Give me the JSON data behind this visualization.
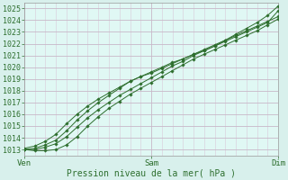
{
  "title": "",
  "xlabel": "Pression niveau de la mer( hPa )",
  "ylabel": "",
  "bg_color": "#d8f0ec",
  "plot_bg_color": "#e0f8f4",
  "grid_color_major": "#c8b8c8",
  "grid_color_minor": "#d8c8d8",
  "line_color": "#2d6e2d",
  "marker_color": "#2d6e2d",
  "tick_label_color": "#2d6e2d",
  "axis_label_color": "#2d6e2d",
  "ylim": [
    1012.5,
    1025.5
  ],
  "yticks": [
    1013,
    1014,
    1015,
    1016,
    1017,
    1018,
    1019,
    1020,
    1021,
    1022,
    1023,
    1024,
    1025
  ],
  "xtick_positions": [
    0.0,
    0.5,
    1.0
  ],
  "xtick_labels": [
    "Ven",
    "Sam",
    "Dim"
  ],
  "lines": [
    {
      "x": [
        0.0,
        0.042,
        0.083,
        0.125,
        0.167,
        0.208,
        0.25,
        0.292,
        0.333,
        0.375,
        0.417,
        0.458,
        0.5,
        0.542,
        0.583,
        0.625,
        0.667,
        0.708,
        0.75,
        0.792,
        0.833,
        0.875,
        0.917,
        0.958,
        1.0
      ],
      "y": [
        1013.0,
        1013.1,
        1013.4,
        1013.8,
        1014.6,
        1015.5,
        1016.3,
        1017.0,
        1017.6,
        1018.2,
        1018.8,
        1019.2,
        1019.5,
        1019.9,
        1020.3,
        1020.7,
        1021.1,
        1021.5,
        1021.9,
        1022.3,
        1022.7,
        1023.1,
        1023.5,
        1023.9,
        1024.3
      ]
    },
    {
      "x": [
        0.0,
        0.042,
        0.083,
        0.125,
        0.167,
        0.208,
        0.25,
        0.292,
        0.333,
        0.375,
        0.417,
        0.458,
        0.5,
        0.542,
        0.583,
        0.625,
        0.667,
        0.708,
        0.75,
        0.792,
        0.833,
        0.875,
        0.917,
        0.958,
        1.0
      ],
      "y": [
        1013.0,
        1012.9,
        1012.9,
        1013.0,
        1013.4,
        1014.1,
        1015.0,
        1015.8,
        1016.5,
        1017.1,
        1017.7,
        1018.2,
        1018.7,
        1019.2,
        1019.7,
        1020.2,
        1020.7,
        1021.1,
        1021.5,
        1021.9,
        1022.3,
        1022.7,
        1023.1,
        1023.6,
        1024.1
      ]
    },
    {
      "x": [
        0.0,
        0.042,
        0.083,
        0.125,
        0.167,
        0.208,
        0.25,
        0.292,
        0.333,
        0.375,
        0.417,
        0.458,
        0.5,
        0.542,
        0.583,
        0.625,
        0.667,
        0.708,
        0.75,
        0.792,
        0.833,
        0.875,
        0.917,
        0.958,
        1.0
      ],
      "y": [
        1013.1,
        1013.3,
        1013.7,
        1014.3,
        1015.2,
        1016.0,
        1016.7,
        1017.3,
        1017.8,
        1018.3,
        1018.8,
        1019.2,
        1019.6,
        1020.0,
        1020.4,
        1020.7,
        1021.1,
        1021.4,
        1021.8,
        1022.2,
        1022.6,
        1023.0,
        1023.4,
        1023.8,
        1024.8
      ]
    },
    {
      "x": [
        0.0,
        0.042,
        0.083,
        0.125,
        0.167,
        0.208,
        0.25,
        0.292,
        0.333,
        0.375,
        0.417,
        0.458,
        0.5,
        0.542,
        0.583,
        0.625,
        0.667,
        0.708,
        0.75,
        0.792,
        0.833,
        0.875,
        0.917,
        0.958,
        1.0
      ],
      "y": [
        1013.0,
        1013.0,
        1013.2,
        1013.5,
        1014.1,
        1014.9,
        1015.7,
        1016.4,
        1017.0,
        1017.6,
        1018.1,
        1018.6,
        1019.1,
        1019.6,
        1020.1,
        1020.5,
        1021.0,
        1021.4,
        1021.8,
        1022.3,
        1022.8,
        1023.3,
        1023.8,
        1024.4,
        1025.2
      ]
    }
  ]
}
